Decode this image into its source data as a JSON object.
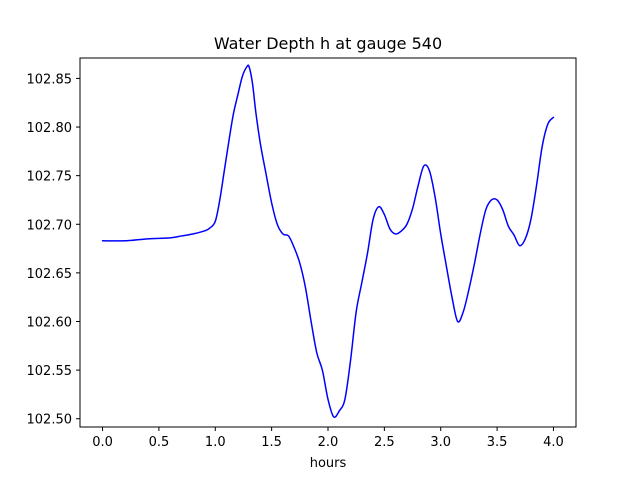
{
  "chart_data": {
    "type": "line",
    "title": "Water Depth h at gauge 540",
    "xlabel": "hours",
    "ylabel": "",
    "xlim": [
      -0.2,
      4.2
    ],
    "ylim": [
      102.4915,
      102.871
    ],
    "xticks": [
      0.0,
      0.5,
      1.0,
      1.5,
      2.0,
      2.5,
      3.0,
      3.5,
      4.0
    ],
    "xtick_labels": [
      "0.0",
      "0.5",
      "1.0",
      "1.5",
      "2.0",
      "2.5",
      "3.0",
      "3.5",
      "4.0"
    ],
    "yticks": [
      102.5,
      102.55,
      102.6,
      102.65,
      102.7,
      102.75,
      102.8,
      102.85
    ],
    "ytick_labels": [
      "102.50",
      "102.55",
      "102.60",
      "102.65",
      "102.70",
      "102.75",
      "102.80",
      "102.85"
    ],
    "grid": false,
    "series": [
      {
        "color": "#0000ff",
        "x": [
          0.0,
          0.2,
          0.4,
          0.6,
          0.7,
          0.8,
          0.9,
          0.95,
          1.0,
          1.04,
          1.08,
          1.12,
          1.16,
          1.2,
          1.24,
          1.28,
          1.3,
          1.33,
          1.36,
          1.4,
          1.45,
          1.5,
          1.55,
          1.6,
          1.65,
          1.7,
          1.75,
          1.8,
          1.85,
          1.9,
          1.95,
          2.0,
          2.05,
          2.1,
          2.15,
          2.2,
          2.25,
          2.3,
          2.35,
          2.4,
          2.45,
          2.5,
          2.55,
          2.6,
          2.65,
          2.7,
          2.75,
          2.8,
          2.85,
          2.9,
          2.95,
          3.0,
          3.05,
          3.1,
          3.15,
          3.2,
          3.25,
          3.3,
          3.35,
          3.4,
          3.45,
          3.5,
          3.55,
          3.6,
          3.65,
          3.7,
          3.75,
          3.8,
          3.85,
          3.9,
          3.95,
          4.0
        ],
        "y": [
          102.683,
          102.683,
          102.685,
          102.686,
          102.688,
          102.69,
          102.693,
          102.696,
          102.703,
          102.725,
          102.755,
          102.785,
          102.813,
          102.833,
          102.852,
          102.862,
          102.862,
          102.845,
          102.815,
          102.783,
          102.752,
          102.722,
          102.7,
          102.69,
          102.688,
          102.676,
          102.66,
          102.635,
          102.6,
          102.568,
          102.55,
          102.52,
          102.502,
          102.508,
          102.52,
          102.56,
          102.61,
          102.64,
          102.67,
          102.705,
          102.718,
          102.71,
          102.695,
          102.69,
          102.693,
          102.7,
          102.716,
          102.74,
          102.76,
          102.755,
          102.728,
          102.69,
          102.657,
          102.625,
          102.6,
          102.61,
          102.633,
          102.66,
          102.69,
          102.715,
          102.725,
          102.725,
          102.715,
          102.698,
          102.689,
          102.678,
          102.685,
          102.705,
          102.74,
          102.78,
          102.803,
          102.81
        ]
      }
    ]
  }
}
